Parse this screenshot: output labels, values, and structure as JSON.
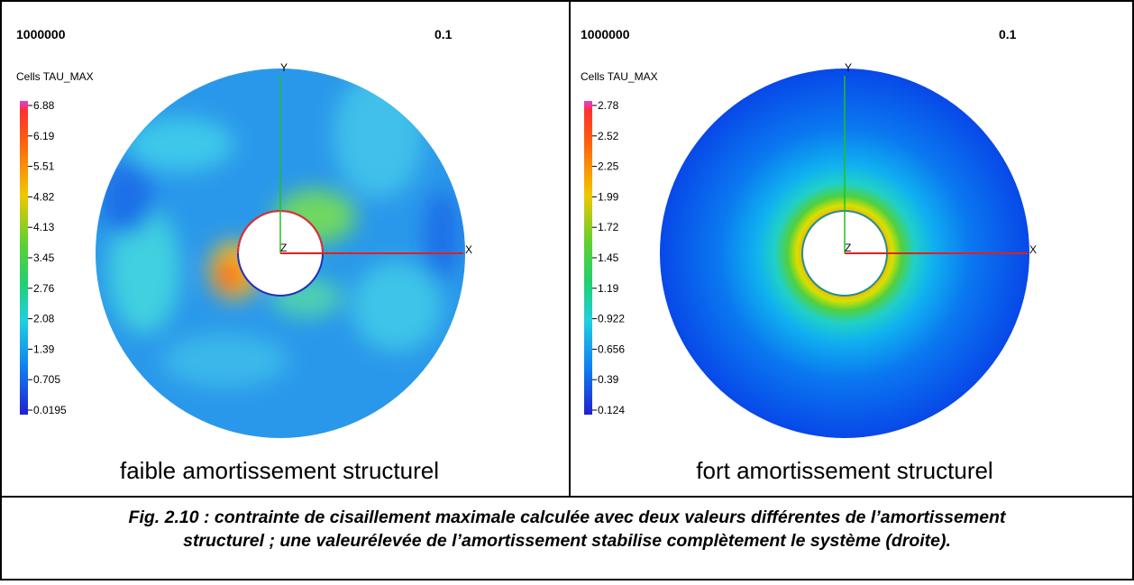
{
  "panels": [
    {
      "step": "1000000",
      "time": "0.1",
      "legend_title": "Cells TAU_MAX",
      "scale_labels": [
        "6.88",
        "6.19",
        "5.51",
        "4.82",
        "4.13",
        "3.45",
        "2.76",
        "2.08",
        "1.39",
        "0.705",
        "0.0195"
      ],
      "axis_labels": {
        "y": "Y",
        "x": "X",
        "z": "Z"
      },
      "caption": "faible amortissement structurel"
    },
    {
      "step": "1000000",
      "time": "0.1",
      "legend_title": "Cells TAU_MAX",
      "scale_labels": [
        "2.78",
        "2.52",
        "2.25",
        "1.99",
        "1.72",
        "1.45",
        "1.19",
        "0.922",
        "0.656",
        "0.39",
        "0.124"
      ],
      "axis_labels": {
        "y": "Y",
        "x": "X",
        "z": "Z"
      },
      "caption": "fort amortissement structurel"
    }
  ],
  "figure_caption": [
    "Fig. 2.10 : contrainte de cisaillement maximale calculée avec deux valeurs différentes de l’amortissement",
    "structurel ; une valeurélevée de l’amortissement stabilise complètement le système (droite)."
  ]
}
